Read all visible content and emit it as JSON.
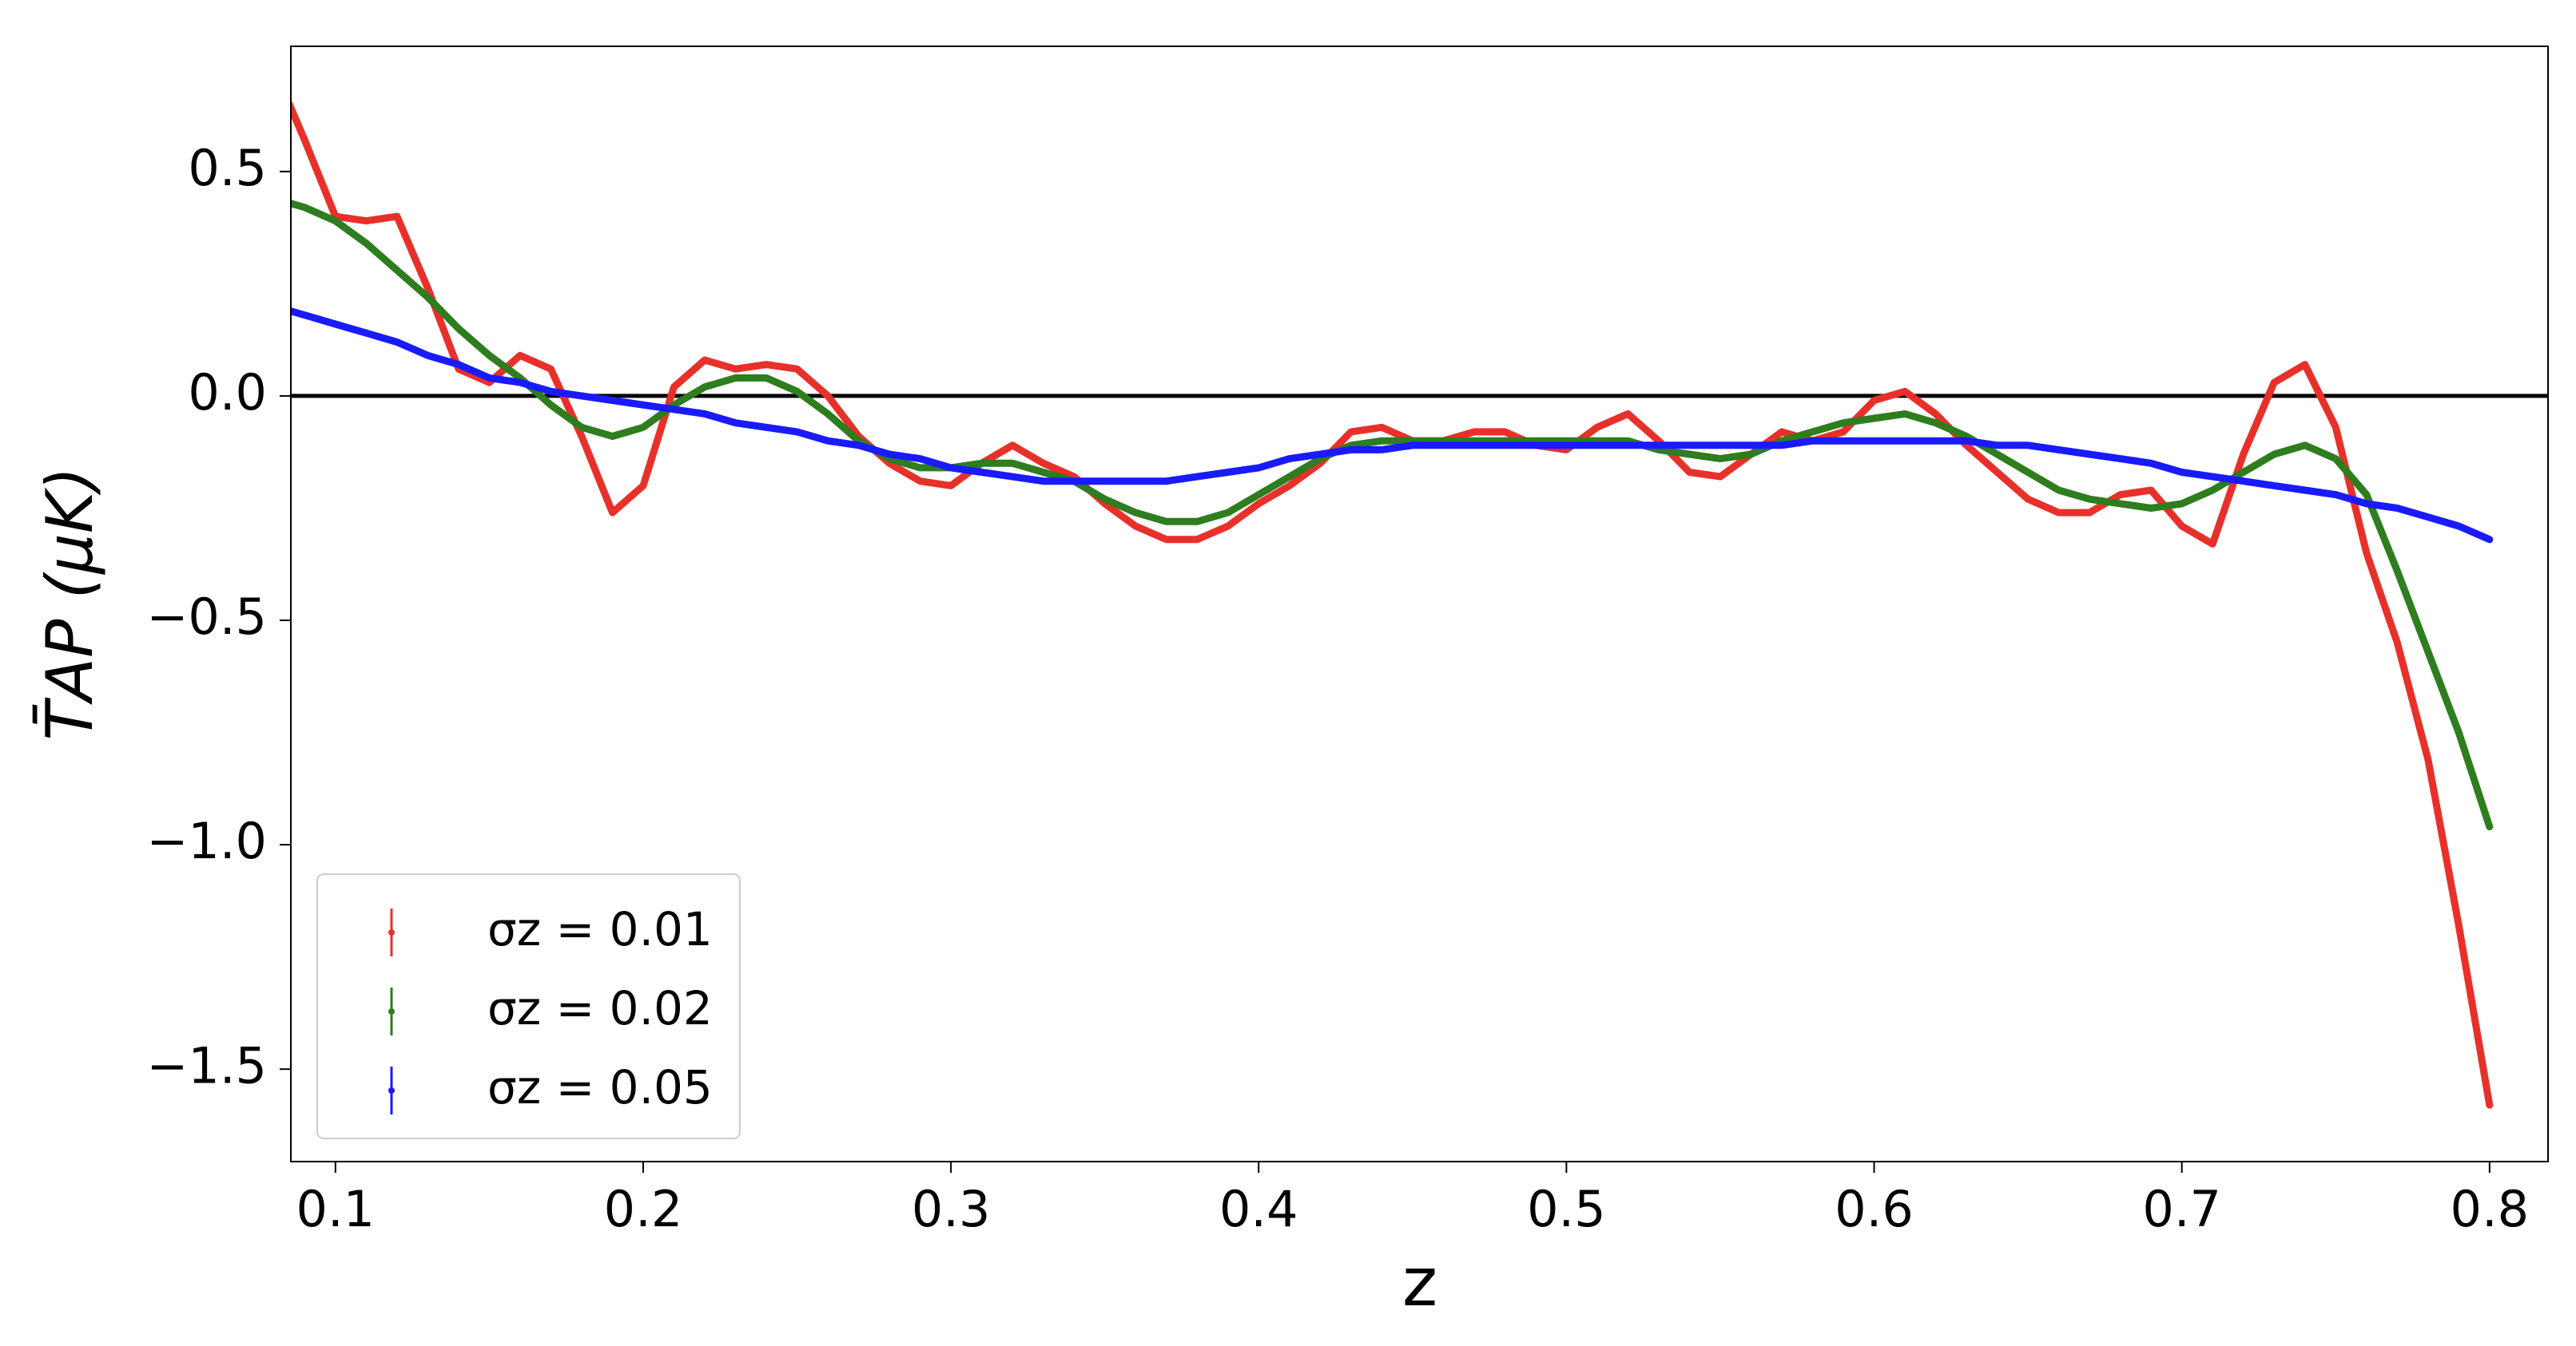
{
  "chart_data": {
    "type": "line",
    "xlabel": "z",
    "ylabel": "T̄AP (μK)",
    "x": [
      0.085,
      0.09,
      0.1,
      0.11,
      0.12,
      0.13,
      0.14,
      0.15,
      0.16,
      0.17,
      0.18,
      0.19,
      0.2,
      0.21,
      0.22,
      0.23,
      0.24,
      0.25,
      0.26,
      0.27,
      0.28,
      0.29,
      0.3,
      0.31,
      0.32,
      0.33,
      0.34,
      0.35,
      0.36,
      0.37,
      0.38,
      0.39,
      0.4,
      0.41,
      0.42,
      0.43,
      0.44,
      0.45,
      0.46,
      0.47,
      0.48,
      0.49,
      0.5,
      0.51,
      0.52,
      0.53,
      0.54,
      0.55,
      0.56,
      0.57,
      0.58,
      0.59,
      0.6,
      0.61,
      0.62,
      0.63,
      0.64,
      0.65,
      0.66,
      0.67,
      0.68,
      0.69,
      0.7,
      0.71,
      0.72,
      0.73,
      0.74,
      0.75,
      0.76,
      0.77,
      0.78,
      0.79,
      0.8
    ],
    "series": [
      {
        "name": "σz = 0.01",
        "color": "#e8302a",
        "values": [
          0.65,
          0.57,
          0.4,
          0.39,
          0.4,
          0.24,
          0.06,
          0.03,
          0.09,
          0.06,
          -0.09,
          -0.26,
          -0.2,
          0.02,
          0.08,
          0.06,
          0.07,
          0.06,
          0.0,
          -0.09,
          -0.15,
          -0.19,
          -0.2,
          -0.15,
          -0.11,
          -0.15,
          -0.18,
          -0.24,
          -0.29,
          -0.32,
          -0.32,
          -0.29,
          -0.24,
          -0.2,
          -0.15,
          -0.08,
          -0.07,
          -0.1,
          -0.1,
          -0.08,
          -0.08,
          -0.11,
          -0.12,
          -0.07,
          -0.04,
          -0.1,
          -0.17,
          -0.18,
          -0.13,
          -0.08,
          -0.1,
          -0.08,
          -0.01,
          0.01,
          -0.04,
          -0.11,
          -0.17,
          -0.23,
          -0.26,
          -0.26,
          -0.22,
          -0.21,
          -0.29,
          -0.33,
          -0.13,
          0.03,
          0.07,
          -0.07,
          -0.35,
          -0.55,
          -0.81,
          -1.18,
          -1.58
        ]
      },
      {
        "name": "σz = 0.02",
        "color": "#2e7d1e",
        "values": [
          0.43,
          0.42,
          0.39,
          0.34,
          0.28,
          0.22,
          0.15,
          0.09,
          0.04,
          -0.02,
          -0.07,
          -0.09,
          -0.07,
          -0.02,
          0.02,
          0.04,
          0.04,
          0.01,
          -0.04,
          -0.1,
          -0.14,
          -0.16,
          -0.16,
          -0.15,
          -0.15,
          -0.17,
          -0.19,
          -0.23,
          -0.26,
          -0.28,
          -0.28,
          -0.26,
          -0.22,
          -0.18,
          -0.14,
          -0.11,
          -0.1,
          -0.1,
          -0.1,
          -0.1,
          -0.1,
          -0.1,
          -0.1,
          -0.1,
          -0.1,
          -0.12,
          -0.13,
          -0.14,
          -0.13,
          -0.1,
          -0.08,
          -0.06,
          -0.05,
          -0.04,
          -0.06,
          -0.09,
          -0.13,
          -0.17,
          -0.21,
          -0.23,
          -0.24,
          -0.25,
          -0.24,
          -0.21,
          -0.17,
          -0.13,
          -0.11,
          -0.14,
          -0.22,
          -0.39,
          -0.57,
          -0.75,
          -0.96
        ]
      },
      {
        "name": "σz = 0.05",
        "color": "#1a1aff",
        "values": [
          0.19,
          0.18,
          0.16,
          0.14,
          0.12,
          0.09,
          0.07,
          0.04,
          0.03,
          0.01,
          0.0,
          -0.01,
          -0.02,
          -0.03,
          -0.04,
          -0.06,
          -0.07,
          -0.08,
          -0.1,
          -0.11,
          -0.13,
          -0.14,
          -0.16,
          -0.17,
          -0.18,
          -0.19,
          -0.19,
          -0.19,
          -0.19,
          -0.19,
          -0.18,
          -0.17,
          -0.16,
          -0.14,
          -0.13,
          -0.12,
          -0.12,
          -0.11,
          -0.11,
          -0.11,
          -0.11,
          -0.11,
          -0.11,
          -0.11,
          -0.11,
          -0.11,
          -0.11,
          -0.11,
          -0.11,
          -0.11,
          -0.1,
          -0.1,
          -0.1,
          -0.1,
          -0.1,
          -0.1,
          -0.11,
          -0.11,
          -0.12,
          -0.13,
          -0.14,
          -0.15,
          -0.17,
          -0.18,
          -0.19,
          -0.2,
          -0.21,
          -0.22,
          -0.24,
          -0.25,
          -0.27,
          -0.29,
          -0.32
        ]
      }
    ],
    "xlim": [
      0.0855,
      0.819
    ],
    "ylim": [
      -1.706,
      0.779
    ],
    "xticks": [
      0.1,
      0.2,
      0.3,
      0.4,
      0.5,
      0.6,
      0.7,
      0.8
    ],
    "yticks": [
      0.5,
      {
        "value": 0,
        "label": "0.0"
      },
      {
        "value": -0.5,
        "label": "−0.5"
      },
      {
        "value": -1,
        "label": "−1.0"
      },
      {
        "value": -1.5,
        "label": "−1.5"
      }
    ],
    "axhline": 0,
    "legend": "lower left"
  }
}
